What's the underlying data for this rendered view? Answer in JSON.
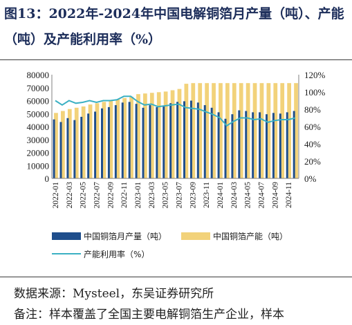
{
  "figure": {
    "title": "图13：2022年-2024年中国电解铜箔月产量（吨）、产能（吨）及产能利用率（%）",
    "source": "数据来源：Mysteel，东吴证券研究所",
    "note": "备注：样本覆盖了全国主要电解铜箔生产企业，样本"
  },
  "chart_data": {
    "type": "bar",
    "categories": [
      "2022-01",
      "2022-02",
      "2022-03",
      "2022-04",
      "2022-05",
      "2022-06",
      "2022-07",
      "2022-08",
      "2022-09",
      "2022-10",
      "2022-11",
      "2022-12",
      "2023-01",
      "2023-02",
      "2023-03",
      "2023-04",
      "2023-05",
      "2023-06",
      "2023-07",
      "2023-08",
      "2023-09",
      "2023-10",
      "2023-11",
      "2023-12",
      "2024-01",
      "2024-02",
      "2024-03",
      "2024-04",
      "2024-05",
      "2024-06",
      "2024-07",
      "2024-08",
      "2024-09",
      "2024-10",
      "2024-11",
      "2024-12"
    ],
    "x_tick_labels": [
      "2022-01",
      "2022-03",
      "2022-05",
      "2022-07",
      "2022-09",
      "2022-11",
      "2023-01",
      "2023-03",
      "2023-05",
      "2023-07",
      "2023-09",
      "2023-11",
      "2024-01",
      "2024-03",
      "2024-05",
      "2024-07",
      "2024-09",
      "2024-11"
    ],
    "series": [
      {
        "name": "中国铜箔月产量（吨）",
        "type": "bar",
        "axis": "left",
        "color": "#1f4e8c",
        "values": [
          45500,
          43500,
          46500,
          45000,
          47500,
          50000,
          51500,
          54000,
          55000,
          56500,
          58500,
          59000,
          57500,
          54500,
          56500,
          55000,
          56000,
          58000,
          59000,
          59500,
          60000,
          58500,
          56500,
          54500,
          51000,
          46000,
          49500,
          52500,
          52000,
          51000,
          51000,
          49500,
          50500,
          50000,
          51000,
          52000
        ]
      },
      {
        "name": "中国铜箔产能（吨）",
        "type": "bar",
        "axis": "right_stack",
        "color": "#f2d27a",
        "values": [
          50500,
          52000,
          53500,
          54500,
          55500,
          57000,
          58000,
          59000,
          60000,
          61000,
          62000,
          63000,
          65000,
          65500,
          66000,
          66500,
          67000,
          68000,
          69000,
          73000,
          73500,
          73500,
          73500,
          73500,
          73500,
          73500,
          73500,
          73500,
          73500,
          73500,
          73500,
          73500,
          73500,
          73500,
          73500,
          73500
        ]
      },
      {
        "name": "产能利用率（%）",
        "type": "line",
        "axis": "right",
        "color": "#3ab0c3",
        "values": [
          90,
          85,
          90,
          87,
          88,
          90,
          88,
          90,
          90,
          91,
          95,
          95,
          89,
          85,
          86,
          83,
          84,
          85,
          86,
          82,
          81,
          80,
          77,
          74,
          70,
          61,
          66,
          70,
          70,
          68,
          69,
          65,
          67,
          68,
          68,
          70
        ]
      }
    ],
    "y_left": {
      "min": 0,
      "max": 80000,
      "ticks": [
        0,
        10000,
        20000,
        30000,
        40000,
        50000,
        60000,
        70000,
        80000
      ]
    },
    "y_right": {
      "min": 0,
      "max": 120,
      "ticks": [
        "0%",
        "20%",
        "40%",
        "60%",
        "80%",
        "100%",
        "120%"
      ]
    },
    "legend": [
      "中国铜箔月产量（吨）",
      "中国铜箔产能（吨）",
      "产能利用率（%）"
    ],
    "legend_position": "bottom",
    "grid": false
  }
}
